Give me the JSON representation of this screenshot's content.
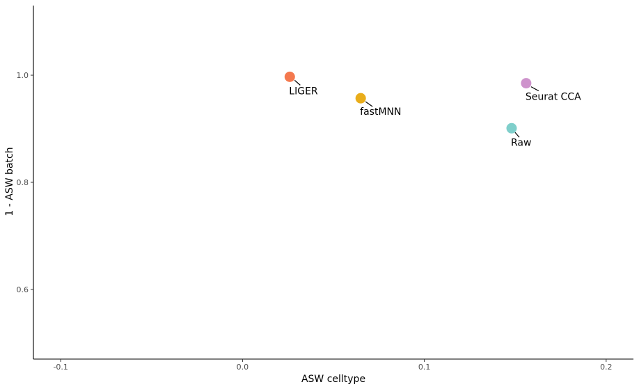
{
  "chart_data": {
    "type": "scatter",
    "title": "",
    "xlabel": "ASW celltype",
    "ylabel": "1 - ASW batch",
    "xlim": [
      -0.115,
      0.215
    ],
    "ylim": [
      0.47,
      1.13
    ],
    "x_ticks": [
      {
        "value": -0.1,
        "label": "-0.1"
      },
      {
        "value": 0.0,
        "label": "0.0"
      },
      {
        "value": 0.1,
        "label": "0.1"
      },
      {
        "value": 0.2,
        "label": "0.2"
      }
    ],
    "y_ticks": [
      {
        "value": 0.6,
        "label": "0.6"
      },
      {
        "value": 0.8,
        "label": "0.8"
      },
      {
        "value": 1.0,
        "label": "1.0"
      }
    ],
    "grid": false,
    "legend": "none",
    "points": [
      {
        "label": "LIGER",
        "x": 0.026,
        "y": 0.997,
        "color": "#F4794E"
      },
      {
        "label": "fastMNN",
        "x": 0.065,
        "y": 0.957,
        "color": "#E9AD1A"
      },
      {
        "label": "Seurat CCA",
        "x": 0.156,
        "y": 0.985,
        "color": "#CE93CC"
      },
      {
        "label": "Raw",
        "x": 0.148,
        "y": 0.901,
        "color": "#7FCFCB"
      }
    ]
  }
}
